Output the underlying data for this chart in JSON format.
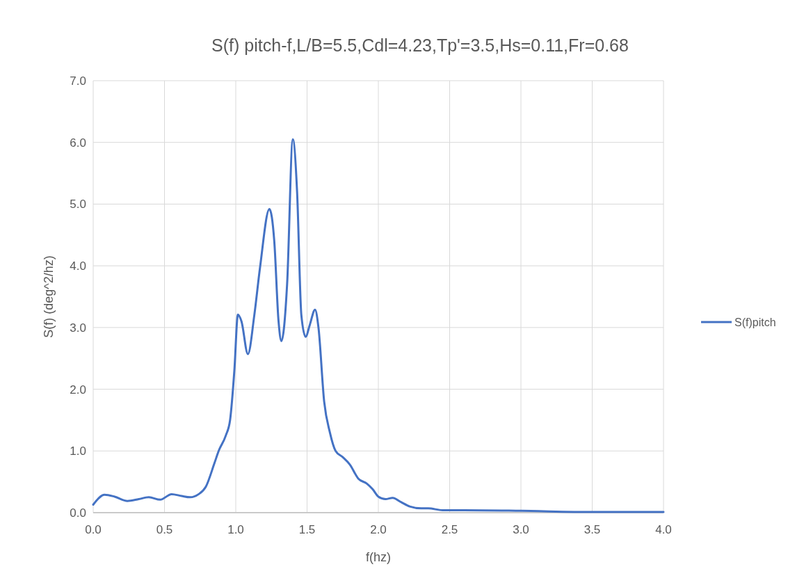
{
  "chart_data": {
    "type": "line",
    "title": "S(f) pitch-f,L/B=5.5,Cdl=4.23,Tp'=3.5,Hs=0.11,Fr=0.68",
    "xlabel": "f(hz)",
    "ylabel": "S(f) (deg^2/hz)",
    "xlim": [
      0,
      4
    ],
    "xticks": [
      {
        "value": 0,
        "label": "0.0"
      },
      {
        "value": 0.5,
        "label": "0.5"
      },
      {
        "value": 1,
        "label": "1.0"
      },
      {
        "value": 1.5,
        "label": "1.5"
      },
      {
        "value": 2,
        "label": "2.0"
      },
      {
        "value": 2.5,
        "label": "2.5"
      },
      {
        "value": 3,
        "label": "3.0"
      },
      {
        "value": 3.5,
        "label": "3.5"
      },
      {
        "value": 4,
        "label": "4.0"
      }
    ],
    "ylim": [
      0,
      7
    ],
    "yticks": [
      {
        "value": 0,
        "label": "0.0"
      },
      {
        "value": 1,
        "label": "1.0"
      },
      {
        "value": 2,
        "label": "2.0"
      },
      {
        "value": 3,
        "label": "3.0"
      },
      {
        "value": 4,
        "label": "4.0"
      },
      {
        "value": 5,
        "label": "5.0"
      },
      {
        "value": 6,
        "label": "6.0"
      },
      {
        "value": 7,
        "label": "7.0"
      }
    ],
    "grid": true,
    "legend": "right",
    "line_style": "solid",
    "marker": "none",
    "series": [
      {
        "name": "S(f)pitch",
        "color": "#4472c4",
        "x": [
          0,
          0.08,
          0.15,
          0.24,
          0.32,
          0.39,
          0.47,
          0.55,
          0.62,
          0.68,
          0.74,
          0.79,
          0.85,
          0.88,
          0.93,
          0.96,
          0.99,
          1.015,
          1.04,
          1.085,
          1.13,
          1.17,
          1.236,
          1.27,
          1.3,
          1.32,
          1.36,
          1.4,
          1.43,
          1.46,
          1.49,
          1.52,
          1.556,
          1.58,
          1.62,
          1.66,
          1.7,
          1.75,
          1.8,
          1.86,
          1.92,
          1.96,
          2.0,
          2.05,
          2.1,
          2.16,
          2.22,
          2.3,
          2.35,
          2.45,
          2.6,
          3.0,
          3.5,
          4.0
        ],
        "values": [
          0.13,
          0.29,
          0.26,
          0.19,
          0.22,
          0.25,
          0.21,
          0.3,
          0.27,
          0.25,
          0.3,
          0.42,
          0.8,
          1.0,
          1.25,
          1.5,
          2.3,
          3.21,
          3.1,
          2.57,
          3.2,
          3.97,
          4.92,
          4.4,
          3.1,
          2.78,
          3.7,
          6.05,
          5.2,
          3.2,
          2.85,
          3.05,
          3.29,
          3.0,
          1.8,
          1.3,
          1.0,
          0.9,
          0.78,
          0.55,
          0.47,
          0.38,
          0.26,
          0.22,
          0.24,
          0.17,
          0.1,
          0.07,
          0.07,
          0.04,
          0.04,
          0.03,
          0.01,
          0.01
        ]
      }
    ]
  }
}
